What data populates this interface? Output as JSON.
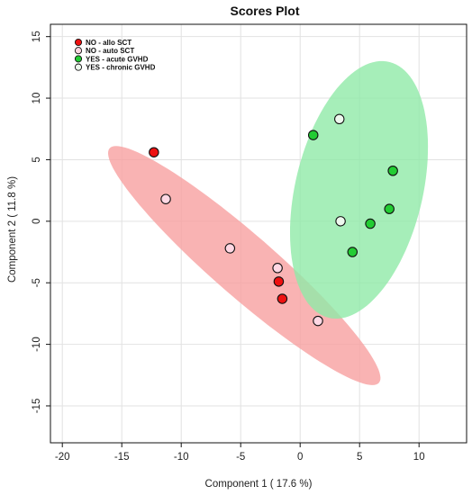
{
  "chart_data": {
    "type": "scatter",
    "title": "Scores Plot",
    "xlabel": "Component 1 ( 17.6 %)",
    "ylabel": "Component 2 ( 11.8 %)",
    "xlim": [
      -21,
      14
    ],
    "ylim": [
      -18,
      16
    ],
    "x_ticks": [
      -20,
      -15,
      -10,
      -5,
      0,
      5,
      10
    ],
    "y_ticks": [
      -15,
      -10,
      -5,
      0,
      5,
      10,
      15
    ],
    "grid": true,
    "legend_position": "top-left",
    "series": [
      {
        "name": "NO - allo SCT",
        "color": "#ee1111",
        "points": [
          [
            -12.3,
            5.6
          ],
          [
            -1.8,
            -4.9
          ],
          [
            -1.5,
            -6.3
          ]
        ]
      },
      {
        "name": "NO - auto SCT",
        "color": "#ffd8e4",
        "points": [
          [
            -11.3,
            1.8
          ],
          [
            -5.9,
            -2.2
          ],
          [
            -1.9,
            -3.8
          ],
          [
            1.5,
            -8.1
          ]
        ]
      },
      {
        "name": "YES - acute GVHD",
        "color": "#22cc33",
        "points": [
          [
            1.1,
            7.0
          ],
          [
            7.8,
            4.1
          ],
          [
            7.5,
            1.0
          ],
          [
            5.9,
            -0.2
          ],
          [
            4.4,
            -2.5
          ]
        ]
      },
      {
        "name": "YES - chronic GVHD",
        "color": "#eef8ee",
        "points": [
          [
            3.3,
            8.3
          ],
          [
            3.4,
            0.0
          ]
        ]
      }
    ],
    "confidence_ellipses": [
      {
        "group": "NO",
        "color": "#f8a0a0",
        "center": [
          -4.7,
          -3.6
        ],
        "rx": 14.8,
        "ry": 2.55,
        "angle_deg": -40
      },
      {
        "group": "YES",
        "color": "#90eaa8",
        "center": [
          4.95,
          2.55
        ],
        "rx": 10.7,
        "ry": 5.35,
        "angle_deg": 76
      }
    ]
  }
}
